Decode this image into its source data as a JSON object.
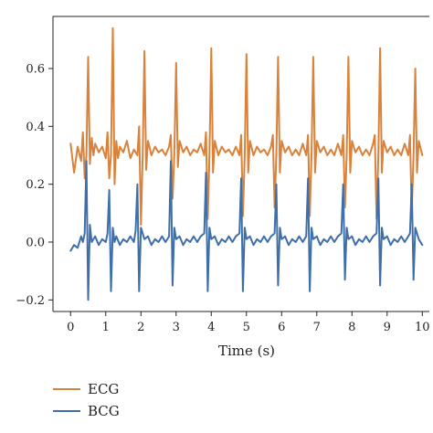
{
  "chart_data": {
    "type": "line",
    "title": "",
    "xlabel": "Time (s)",
    "ylabel": "",
    "xlim": [
      -0.5,
      10.2
    ],
    "ylim": [
      -0.24,
      0.78
    ],
    "xticks": [
      0,
      1,
      2,
      3,
      4,
      5,
      6,
      7,
      8,
      9,
      10
    ],
    "xtick_labels": [
      "0",
      "1",
      "2",
      "3",
      "4",
      "5",
      "6",
      "7",
      "8",
      "9",
      "10"
    ],
    "yticks": [
      -0.2,
      0.0,
      0.2,
      0.4,
      0.6
    ],
    "ytick_labels": [
      "−0.2",
      "0.0",
      "0.2",
      "0.4",
      "0.6"
    ],
    "grid": false,
    "legend_position": "below-left",
    "series": [
      {
        "name": "ECG",
        "color": "#d9823b",
        "x": [
          0.0,
          0.1,
          0.2,
          0.3,
          0.35,
          0.4,
          0.45,
          0.5,
          0.55,
          0.6,
          0.65,
          0.7,
          0.8,
          0.9,
          1.0,
          1.05,
          1.1,
          1.15,
          1.2,
          1.25,
          1.3,
          1.35,
          1.4,
          1.5,
          1.6,
          1.7,
          1.8,
          1.9,
          1.95,
          2.0,
          2.05,
          2.1,
          2.15,
          2.2,
          2.3,
          2.4,
          2.5,
          2.6,
          2.7,
          2.8,
          2.85,
          2.9,
          2.95,
          3.0,
          3.05,
          3.1,
          3.2,
          3.3,
          3.4,
          3.5,
          3.6,
          3.7,
          3.8,
          3.85,
          3.9,
          3.95,
          4.0,
          4.05,
          4.1,
          4.2,
          4.3,
          4.4,
          4.5,
          4.6,
          4.7,
          4.8,
          4.85,
          4.9,
          4.95,
          5.0,
          5.05,
          5.1,
          5.2,
          5.3,
          5.4,
          5.5,
          5.6,
          5.7,
          5.75,
          5.8,
          5.85,
          5.9,
          5.95,
          6.0,
          6.1,
          6.2,
          6.3,
          6.4,
          6.5,
          6.6,
          6.7,
          6.75,
          6.8,
          6.85,
          6.9,
          6.95,
          7.0,
          7.1,
          7.2,
          7.3,
          7.4,
          7.5,
          7.6,
          7.7,
          7.75,
          7.8,
          7.85,
          7.9,
          7.95,
          8.0,
          8.1,
          8.2,
          8.3,
          8.4,
          8.5,
          8.6,
          8.65,
          8.7,
          8.75,
          8.8,
          8.85,
          8.9,
          9.0,
          9.1,
          9.2,
          9.3,
          9.4,
          9.5,
          9.6,
          9.65,
          9.7,
          9.75,
          9.8,
          9.85,
          9.9,
          10.0
        ],
        "y": [
          0.34,
          0.24,
          0.33,
          0.28,
          0.38,
          0.22,
          0.3,
          0.64,
          0.27,
          0.36,
          0.3,
          0.34,
          0.31,
          0.33,
          0.29,
          0.38,
          0.22,
          0.3,
          0.74,
          0.2,
          0.35,
          0.29,
          0.33,
          0.31,
          0.35,
          0.29,
          0.32,
          0.3,
          0.4,
          0.06,
          0.3,
          0.66,
          0.25,
          0.35,
          0.3,
          0.33,
          0.31,
          0.32,
          0.3,
          0.33,
          0.37,
          0.15,
          0.3,
          0.62,
          0.26,
          0.35,
          0.31,
          0.33,
          0.3,
          0.32,
          0.31,
          0.34,
          0.3,
          0.38,
          0.08,
          0.3,
          0.67,
          0.24,
          0.35,
          0.3,
          0.33,
          0.31,
          0.32,
          0.3,
          0.33,
          0.3,
          0.37,
          0.09,
          0.3,
          0.65,
          0.24,
          0.35,
          0.3,
          0.33,
          0.31,
          0.32,
          0.3,
          0.33,
          0.37,
          0.12,
          0.3,
          0.64,
          0.24,
          0.35,
          0.31,
          0.33,
          0.3,
          0.32,
          0.3,
          0.34,
          0.3,
          0.37,
          0.09,
          0.3,
          0.64,
          0.24,
          0.35,
          0.31,
          0.33,
          0.3,
          0.32,
          0.3,
          0.34,
          0.3,
          0.37,
          0.12,
          0.3,
          0.64,
          0.24,
          0.35,
          0.31,
          0.33,
          0.3,
          0.32,
          0.3,
          0.34,
          0.37,
          0.08,
          0.3,
          0.67,
          0.24,
          0.35,
          0.31,
          0.33,
          0.3,
          0.32,
          0.3,
          0.34,
          0.3,
          0.37,
          0.1,
          0.3,
          0.6,
          0.24,
          0.35,
          0.3
        ]
      },
      {
        "name": "BCG",
        "color": "#3f6fa8",
        "x": [
          0.0,
          0.1,
          0.2,
          0.3,
          0.35,
          0.4,
          0.45,
          0.5,
          0.55,
          0.6,
          0.7,
          0.8,
          0.9,
          1.0,
          1.05,
          1.1,
          1.15,
          1.2,
          1.25,
          1.3,
          1.4,
          1.5,
          1.6,
          1.7,
          1.8,
          1.85,
          1.9,
          1.95,
          2.0,
          2.1,
          2.2,
          2.3,
          2.4,
          2.5,
          2.6,
          2.7,
          2.8,
          2.85,
          2.9,
          2.95,
          3.0,
          3.1,
          3.2,
          3.3,
          3.4,
          3.5,
          3.6,
          3.7,
          3.8,
          3.85,
          3.9,
          3.95,
          4.0,
          4.1,
          4.2,
          4.3,
          4.4,
          4.5,
          4.6,
          4.7,
          4.8,
          4.85,
          4.9,
          4.95,
          5.0,
          5.1,
          5.2,
          5.3,
          5.4,
          5.5,
          5.6,
          5.7,
          5.8,
          5.85,
          5.9,
          5.95,
          6.0,
          6.1,
          6.2,
          6.3,
          6.4,
          6.5,
          6.6,
          6.7,
          6.75,
          6.8,
          6.85,
          6.9,
          7.0,
          7.1,
          7.2,
          7.3,
          7.4,
          7.5,
          7.6,
          7.7,
          7.75,
          7.8,
          7.85,
          7.9,
          8.0,
          8.1,
          8.2,
          8.3,
          8.4,
          8.5,
          8.6,
          8.7,
          8.75,
          8.8,
          8.85,
          8.9,
          9.0,
          9.1,
          9.2,
          9.3,
          9.4,
          9.5,
          9.6,
          9.65,
          9.7,
          9.75,
          9.8,
          9.9,
          10.0
        ],
        "y": [
          -0.03,
          -0.01,
          -0.02,
          0.02,
          0.0,
          0.03,
          0.28,
          -0.2,
          0.06,
          0.0,
          0.02,
          -0.01,
          0.01,
          0.0,
          0.03,
          0.18,
          -0.17,
          0.05,
          0.0,
          0.02,
          -0.01,
          0.01,
          0.0,
          0.02,
          0.0,
          0.04,
          0.2,
          -0.17,
          0.05,
          0.01,
          0.02,
          -0.01,
          0.01,
          0.0,
          0.02,
          0.0,
          0.02,
          0.28,
          -0.15,
          0.05,
          0.01,
          0.02,
          -0.01,
          0.01,
          0.0,
          0.02,
          0.0,
          0.02,
          0.03,
          0.24,
          -0.17,
          0.05,
          0.01,
          0.02,
          -0.01,
          0.01,
          0.0,
          0.02,
          0.0,
          0.02,
          0.03,
          0.22,
          -0.17,
          0.05,
          0.01,
          0.02,
          -0.01,
          0.01,
          0.0,
          0.02,
          0.0,
          0.02,
          0.03,
          0.2,
          -0.15,
          0.05,
          0.01,
          0.02,
          -0.01,
          0.01,
          0.0,
          0.02,
          0.0,
          0.02,
          0.22,
          -0.17,
          0.05,
          0.01,
          0.02,
          -0.01,
          0.01,
          0.0,
          0.02,
          0.0,
          0.02,
          0.03,
          0.2,
          -0.13,
          0.05,
          0.01,
          0.02,
          -0.01,
          0.01,
          0.0,
          0.02,
          0.0,
          0.02,
          0.03,
          0.22,
          -0.15,
          0.05,
          0.01,
          0.02,
          -0.01,
          0.01,
          0.0,
          0.02,
          0.0,
          0.02,
          0.03,
          0.2,
          -0.13,
          0.05,
          0.01,
          -0.01
        ]
      }
    ]
  }
}
